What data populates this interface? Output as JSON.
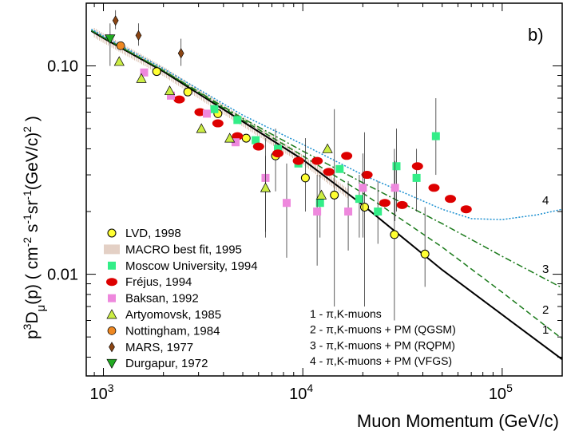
{
  "chart_data": {
    "type": "scatter",
    "panel_label": "b)",
    "xlabel": "Muon Momentum  (GeV/c)",
    "ylabel": {
      "pre": "p",
      "sup1": "3",
      "D": "D",
      "sub": "μ",
      "post": "(p)  ( cm",
      "sup2": "-2",
      "s": " s",
      "sup3": "-1",
      "sr": "sr",
      "sup4": "-1",
      "unit": "(GeV/c)",
      "sup5": "2",
      "close": " )"
    },
    "x_scale": "log",
    "y_scale": "log",
    "xlim": [
      820,
      200000
    ],
    "ylim": [
      0.00325,
      0.2
    ],
    "x_ticks": [
      {
        "value": 1000,
        "base": "10",
        "exp": "3"
      },
      {
        "value": 10000,
        "base": "10",
        "exp": "4"
      },
      {
        "value": 100000,
        "base": "10",
        "exp": "5"
      }
    ],
    "y_ticks": [
      {
        "value": 0.1,
        "label": "0.10"
      },
      {
        "value": 0.01,
        "label": "0.01"
      }
    ],
    "legend_position": "lower-left",
    "legend": [
      {
        "label": "LVD, 1998",
        "marker": "circle",
        "color": "#ffff33"
      },
      {
        "label": "MACRO best fit, 1995",
        "marker": "hatch",
        "color": "#b07a5a"
      },
      {
        "label": "Moscow University, 1994",
        "marker": "square",
        "color": "#33ee88"
      },
      {
        "label": "Fréjus, 1994",
        "marker": "ellipse",
        "color": "#dd0000"
      },
      {
        "label": "Baksan, 1992",
        "marker": "square",
        "color": "#ee88dd"
      },
      {
        "label": "Artyomovsk, 1985",
        "marker": "triangle-up",
        "color": "#ccee44"
      },
      {
        "label": "Nottingham, 1984",
        "marker": "octagon",
        "color": "#ee8822"
      },
      {
        "label": "MARS, 1977",
        "marker": "diamond",
        "color": "#8b4513"
      },
      {
        "label": "Durgapur, 1972",
        "marker": "triangle-down",
        "color": "#22aa22"
      }
    ],
    "model_legend": [
      "1 -  π,K-muons",
      "2 -  π,K-muons  +  PM (QGSM)",
      "3 -  π,K-muons  +  PM (RQPM)",
      "4 -  π,K-muons  +  PM (VFGS)"
    ],
    "curves": [
      {
        "label": "1",
        "style": "solid",
        "color": "#000000",
        "points": [
          [
            870,
            0.147
          ],
          [
            1000,
            0.136
          ],
          [
            2000,
            0.094
          ],
          [
            5000,
            0.054
          ],
          [
            10000,
            0.0355
          ],
          [
            20000,
            0.0215
          ],
          [
            50000,
            0.0105
          ],
          [
            100000,
            0.0064
          ],
          [
            200000,
            0.0039
          ]
        ]
      },
      {
        "label": "2",
        "style": "dashed",
        "color": "#1a7a1a",
        "points": [
          [
            870,
            0.148
          ],
          [
            1000,
            0.137
          ],
          [
            2000,
            0.095
          ],
          [
            5000,
            0.055
          ],
          [
            10000,
            0.037
          ],
          [
            20000,
            0.0245
          ],
          [
            50000,
            0.0135
          ],
          [
            100000,
            0.0082
          ],
          [
            200000,
            0.0049
          ]
        ]
      },
      {
        "label": "3",
        "style": "dashdot",
        "color": "#1a7a1a",
        "points": [
          [
            870,
            0.148
          ],
          [
            1000,
            0.137
          ],
          [
            2000,
            0.095
          ],
          [
            5000,
            0.056
          ],
          [
            10000,
            0.039
          ],
          [
            20000,
            0.0275
          ],
          [
            50000,
            0.0175
          ],
          [
            100000,
            0.0122
          ],
          [
            200000,
            0.0086
          ]
        ]
      },
      {
        "label": "4",
        "style": "dotted",
        "color": "#1a8fd0",
        "points": [
          [
            870,
            0.15
          ],
          [
            1000,
            0.139
          ],
          [
            2000,
            0.097
          ],
          [
            5000,
            0.058
          ],
          [
            10000,
            0.042
          ],
          [
            20000,
            0.03
          ],
          [
            50000,
            0.0205
          ],
          [
            70000,
            0.0185
          ],
          [
            100000,
            0.0183
          ],
          [
            150000,
            0.0193
          ],
          [
            200000,
            0.0205
          ]
        ]
      }
    ],
    "macro_band": {
      "x_range": [
        900,
        17000
      ]
    },
    "series": [
      {
        "name": "LVD, 1998",
        "marker": "circle",
        "color": "#ffff33",
        "points": [
          {
            "x": 1850,
            "y": 0.094
          },
          {
            "x": 2650,
            "y": 0.075
          },
          {
            "x": 3750,
            "y": 0.059
          },
          {
            "x": 5200,
            "y": 0.045
          },
          {
            "x": 7300,
            "y": 0.037,
            "lo": 0.025,
            "hi": 0.05
          },
          {
            "x": 10300,
            "y": 0.029,
            "lo": 0.02,
            "hi": 0.045
          },
          {
            "x": 14400,
            "y": 0.024,
            "lo": 0.007,
            "hi": 0.062
          },
          {
            "x": 20400,
            "y": 0.021,
            "lo": 0.007,
            "hi": 0.048
          },
          {
            "x": 28800,
            "y": 0.0155,
            "lo": 0.006,
            "hi": 0.04
          },
          {
            "x": 41000,
            "y": 0.0125,
            "lo": 0.0087,
            "hi": 0.021
          }
        ]
      },
      {
        "name": "Moscow University, 1994",
        "marker": "square",
        "color": "#33ee88",
        "points": [
          {
            "x": 3600,
            "y": 0.062
          },
          {
            "x": 4700,
            "y": 0.055
          },
          {
            "x": 5800,
            "y": 0.044
          },
          {
            "x": 7500,
            "y": 0.04
          },
          {
            "x": 9500,
            "y": 0.034
          },
          {
            "x": 12200,
            "y": 0.022,
            "lo": 0.015,
            "hi": 0.03
          },
          {
            "x": 15300,
            "y": 0.032
          },
          {
            "x": 19200,
            "y": 0.023,
            "lo": 0.015,
            "hi": 0.03
          },
          {
            "x": 23800,
            "y": 0.02,
            "lo": 0.014,
            "hi": 0.028
          },
          {
            "x": 29500,
            "y": 0.033,
            "lo": 0.02,
            "hi": 0.05
          },
          {
            "x": 37200,
            "y": 0.029,
            "lo": 0.02,
            "hi": 0.04
          },
          {
            "x": 46500,
            "y": 0.046,
            "lo": 0.03,
            "hi": 0.07
          }
        ]
      },
      {
        "name": "Fréjus, 1994",
        "marker": "ellipse",
        "color": "#dd0000",
        "points": [
          {
            "x": 2400,
            "y": 0.069
          },
          {
            "x": 3050,
            "y": 0.06
          },
          {
            "x": 3750,
            "y": 0.053
          },
          {
            "x": 4700,
            "y": 0.046
          },
          {
            "x": 6000,
            "y": 0.041
          },
          {
            "x": 7500,
            "y": 0.038
          },
          {
            "x": 9500,
            "y": 0.035
          },
          {
            "x": 11800,
            "y": 0.035
          },
          {
            "x": 13500,
            "y": 0.031
          },
          {
            "x": 16600,
            "y": 0.037
          },
          {
            "x": 21000,
            "y": 0.03
          },
          {
            "x": 25800,
            "y": 0.022
          },
          {
            "x": 31500,
            "y": 0.0215
          },
          {
            "x": 37600,
            "y": 0.033
          },
          {
            "x": 45500,
            "y": 0.026
          },
          {
            "x": 55000,
            "y": 0.023
          },
          {
            "x": 66000,
            "y": 0.0205
          }
        ]
      },
      {
        "name": "Baksan, 1992",
        "marker": "square",
        "color": "#ee88dd",
        "points": [
          {
            "x": 1600,
            "y": 0.093
          },
          {
            "x": 2180,
            "y": 0.072
          },
          {
            "x": 3300,
            "y": 0.059
          },
          {
            "x": 4600,
            "y": 0.043
          },
          {
            "x": 6500,
            "y": 0.029,
            "lo": 0.015,
            "hi": 0.045
          },
          {
            "x": 8300,
            "y": 0.022,
            "lo": 0.012,
            "hi": 0.034
          },
          {
            "x": 11800,
            "y": 0.02,
            "lo": 0.011,
            "hi": 0.03
          },
          {
            "x": 16900,
            "y": 0.02,
            "lo": 0.013,
            "hi": 0.028
          },
          {
            "x": 20000,
            "y": 0.026,
            "lo": 0.015,
            "hi": 0.038
          },
          {
            "x": 29000,
            "y": 0.026,
            "lo": 0.018,
            "hi": 0.035
          }
        ]
      },
      {
        "name": "Artyomovsk, 1985",
        "marker": "triangle-up",
        "color": "#ccee44",
        "points": [
          {
            "x": 1200,
            "y": 0.105
          },
          {
            "x": 1550,
            "y": 0.087
          },
          {
            "x": 2150,
            "y": 0.076
          },
          {
            "x": 3100,
            "y": 0.05
          },
          {
            "x": 4300,
            "y": 0.045
          },
          {
            "x": 6500,
            "y": 0.026,
            "lo": 0.016,
            "hi": 0.037
          },
          {
            "x": 12400,
            "y": 0.024
          },
          {
            "x": 13300,
            "y": 0.04
          }
        ]
      },
      {
        "name": "Nottingham, 1984",
        "marker": "octagon",
        "color": "#ee8822",
        "points": [
          {
            "x": 1220,
            "y": 0.125
          }
        ]
      },
      {
        "name": "MARS, 1977",
        "marker": "diamond",
        "color": "#8b4513",
        "points": [
          {
            "x": 1150,
            "y": 0.165,
            "lo": 0.15,
            "hi": 0.185
          },
          {
            "x": 1500,
            "y": 0.14,
            "lo": 0.125,
            "hi": 0.16
          },
          {
            "x": 2450,
            "y": 0.115,
            "lo": 0.1,
            "hi": 0.135
          }
        ]
      },
      {
        "name": "Durgapur, 1972",
        "marker": "triangle-down",
        "color": "#22aa22",
        "points": [
          {
            "x": 1080,
            "y": 0.135,
            "lo": 0.1,
            "hi": 0.16
          }
        ]
      }
    ]
  }
}
